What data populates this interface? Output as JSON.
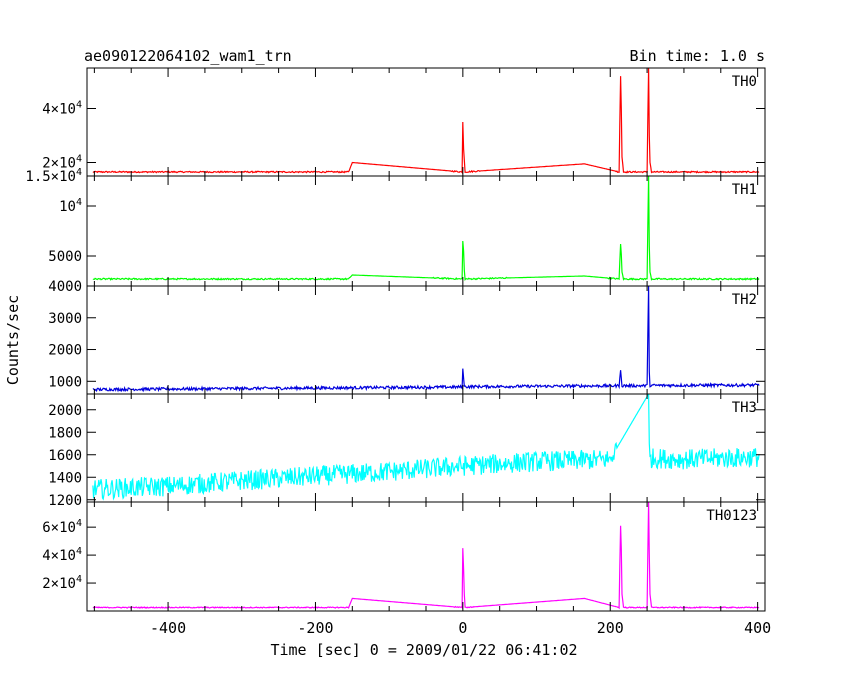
{
  "chart_data": {
    "type": "line",
    "title": "ae090122064102_wam1_trn",
    "bin_label": "Bin time: 1.0 s",
    "xlabel": "Time [sec] 0 = 2009/01/22 06:41:02",
    "ylabel": "Counts/sec",
    "xlim": [
      -510,
      410
    ],
    "x_ticks": [
      "-400",
      "-200",
      "0",
      "200",
      "400"
    ],
    "x_tick_values": [
      -400,
      -200,
      0,
      200,
      400
    ],
    "panels": [
      {
        "name": "TH0",
        "color": "#ff0000",
        "ylim": [
          15000,
          55000
        ],
        "y_ticks": [
          {
            "value": 15000,
            "label": "1.5×10",
            "exp": "4"
          },
          {
            "value": 20000,
            "label": "2×10",
            "exp": "4"
          },
          {
            "value": 40000,
            "label": "4×10",
            "exp": "4"
          }
        ],
        "baseline": 16500,
        "noise": 250,
        "trend": 0,
        "x": [
          -510,
          -155,
          -150,
          -1,
          0,
          1,
          2,
          3,
          165,
          212,
          214,
          215,
          216,
          218,
          250,
          252,
          253,
          254,
          256,
          410
        ],
        "y": [
          16500,
          16500,
          20000,
          16500,
          35000,
          25000,
          21000,
          16500,
          19500,
          16500,
          52000,
          40000,
          22000,
          16500,
          16500,
          55000,
          30000,
          20000,
          16500,
          16500
        ]
      },
      {
        "name": "TH1",
        "color": "#00ff00",
        "ylim": [
          2000,
          13000
        ],
        "y_ticks": [
          {
            "value": 5000,
            "label": "5000",
            "exp": ""
          },
          {
            "value": 10000,
            "label": "10",
            "exp": "4"
          }
        ],
        "baseline": 2700,
        "noise": 70,
        "trend": 0,
        "x": [
          -510,
          -155,
          -150,
          -1,
          0,
          1,
          2,
          3,
          165,
          212,
          214,
          215,
          216,
          218,
          250,
          252,
          253,
          254,
          256,
          410
        ],
        "y": [
          2700,
          2700,
          3100,
          2700,
          6500,
          5500,
          3600,
          2700,
          3000,
          2700,
          6200,
          5200,
          3400,
          2700,
          2700,
          13000,
          6000,
          3400,
          2700,
          2700
        ]
      },
      {
        "name": "TH2",
        "color": "#0000dd",
        "ylim": [
          600,
          4000
        ],
        "y_ticks": [
          {
            "value": 1000,
            "label": "1000",
            "exp": ""
          },
          {
            "value": 2000,
            "label": "2000",
            "exp": ""
          },
          {
            "value": 3000,
            "label": "3000",
            "exp": ""
          },
          {
            "value": 4000,
            "label": "4000",
            "exp": ""
          }
        ],
        "baseline": 740,
        "noise": 45,
        "trend": 130,
        "x": [
          -510,
          -1,
          0,
          1,
          2,
          212,
          214,
          215,
          216,
          250,
          252,
          253,
          254,
          410
        ],
        "y": [
          740,
          820,
          1400,
          1100,
          830,
          860,
          1350,
          1100,
          860,
          860,
          4000,
          1300,
          870,
          880
        ]
      },
      {
        "name": "TH3",
        "color": "#00ffff",
        "ylim": [
          1180,
          2140
        ],
        "y_ticks": [
          {
            "value": 1200,
            "label": "1200",
            "exp": ""
          },
          {
            "value": 1400,
            "label": "1400",
            "exp": ""
          },
          {
            "value": 1600,
            "label": "1600",
            "exp": ""
          },
          {
            "value": 1800,
            "label": "1800",
            "exp": ""
          },
          {
            "value": 2000,
            "label": "2000",
            "exp": ""
          }
        ],
        "baseline": 1290,
        "noise": 90,
        "trend": 290,
        "x": [
          -510,
          -400,
          -300,
          -200,
          -100,
          0,
          100,
          200,
          252,
          253,
          254,
          300,
          410
        ],
        "y": [
          1290,
          1320,
          1370,
          1410,
          1450,
          1500,
          1540,
          1560,
          2140,
          1700,
          1570,
          1560,
          1580
        ]
      },
      {
        "name": "TH0123",
        "color": "#ff00ff",
        "ylim": [
          0,
          78000
        ],
        "y_ticks": [
          {
            "value": 20000,
            "label": "2×10",
            "exp": "4"
          },
          {
            "value": 40000,
            "label": "4×10",
            "exp": "4"
          },
          {
            "value": 60000,
            "label": "6×10",
            "exp": "4"
          }
        ],
        "baseline": 2500,
        "noise": 350,
        "trend": 0,
        "x": [
          -510,
          -155,
          -150,
          -1,
          0,
          1,
          2,
          3,
          165,
          212,
          214,
          215,
          216,
          218,
          250,
          252,
          253,
          254,
          256,
          410
        ],
        "y": [
          2500,
          2500,
          9000,
          2500,
          45000,
          30000,
          12000,
          2500,
          9000,
          2500,
          61000,
          45000,
          12000,
          2500,
          2500,
          78000,
          40000,
          12000,
          2500,
          2500
        ]
      }
    ]
  }
}
